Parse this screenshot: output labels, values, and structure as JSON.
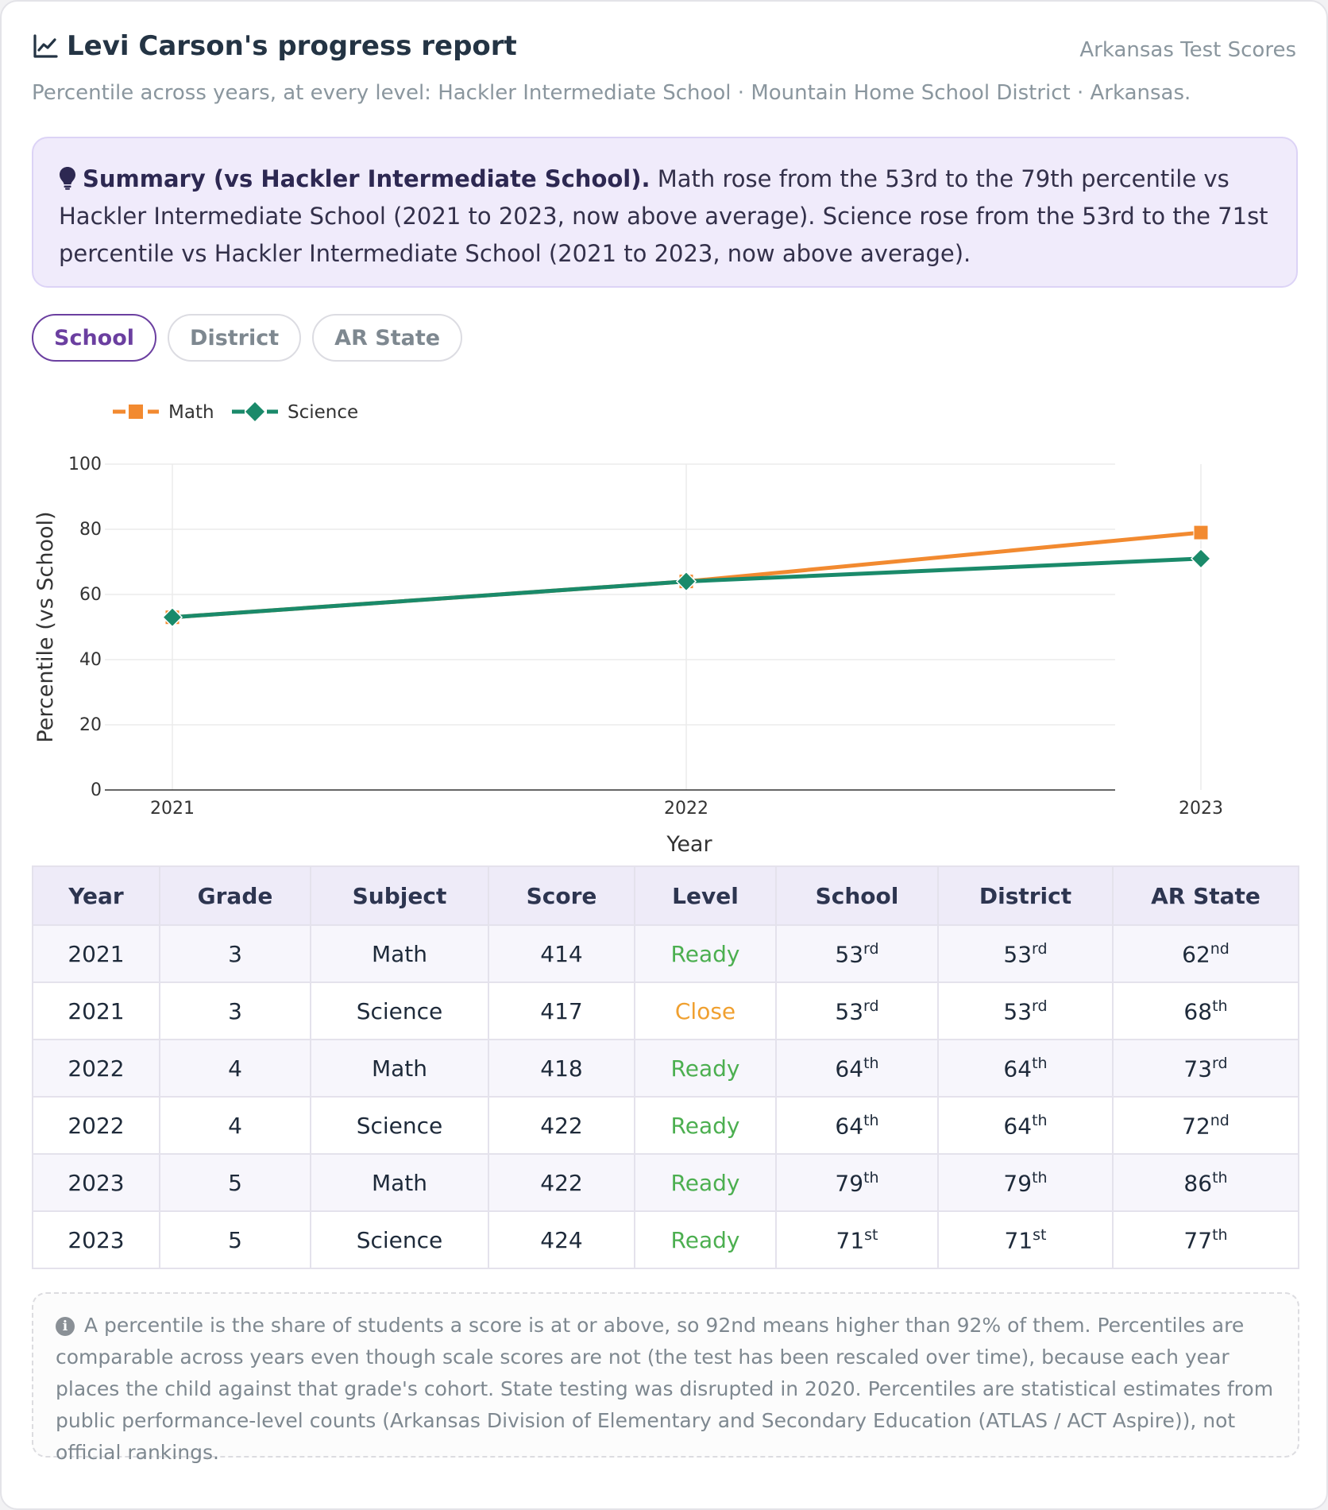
{
  "header": {
    "title": "Levi Carson's progress report",
    "brand": "Arkansas Test Scores",
    "subtitle": "Percentile across years, at every level: Hackler Intermediate School · Mountain Home School District · Arkansas."
  },
  "summary": {
    "heading": "Summary (vs Hackler Intermediate School).",
    "body": "Math rose from the 53rd to the 79th percentile vs Hackler Intermediate School (2021 to 2023, now above average). Science rose from the 53rd to the 71st percentile vs Hackler Intermediate School (2021 to 2023, now above average)."
  },
  "tabs": [
    {
      "label": "School",
      "active": true
    },
    {
      "label": "District",
      "active": false
    },
    {
      "label": "AR State",
      "active": false
    }
  ],
  "chart_data": {
    "type": "line",
    "x": [
      "2021",
      "2022",
      "2023"
    ],
    "series": [
      {
        "name": "Math",
        "values": [
          53,
          64,
          79
        ],
        "color": "#f28a30",
        "marker": "square"
      },
      {
        "name": "Science",
        "values": [
          53,
          64,
          71
        ],
        "color": "#1a8a6a",
        "marker": "diamond"
      }
    ],
    "xlabel": "Year",
    "ylabel": "Percentile (vs School)",
    "ylim": [
      0,
      100
    ],
    "yticks": [
      0,
      20,
      40,
      60,
      80,
      100
    ],
    "legend": "top-left",
    "grid": true
  },
  "table": {
    "headers": [
      "Year",
      "Grade",
      "Subject",
      "Score",
      "Level",
      "School",
      "District",
      "AR State"
    ],
    "rows": [
      {
        "year": "2021",
        "grade": "3",
        "subject": "Math",
        "score": "414",
        "level": "Ready",
        "school": "53",
        "school_suffix": "rd",
        "district": "53",
        "district_suffix": "rd",
        "state": "62",
        "state_suffix": "nd"
      },
      {
        "year": "2021",
        "grade": "3",
        "subject": "Science",
        "score": "417",
        "level": "Close",
        "school": "53",
        "school_suffix": "rd",
        "district": "53",
        "district_suffix": "rd",
        "state": "68",
        "state_suffix": "th"
      },
      {
        "year": "2022",
        "grade": "4",
        "subject": "Math",
        "score": "418",
        "level": "Ready",
        "school": "64",
        "school_suffix": "th",
        "district": "64",
        "district_suffix": "th",
        "state": "73",
        "state_suffix": "rd"
      },
      {
        "year": "2022",
        "grade": "4",
        "subject": "Science",
        "score": "422",
        "level": "Ready",
        "school": "64",
        "school_suffix": "th",
        "district": "64",
        "district_suffix": "th",
        "state": "72",
        "state_suffix": "nd"
      },
      {
        "year": "2023",
        "grade": "5",
        "subject": "Math",
        "score": "422",
        "level": "Ready",
        "school": "79",
        "school_suffix": "th",
        "district": "79",
        "district_suffix": "th",
        "state": "86",
        "state_suffix": "th"
      },
      {
        "year": "2023",
        "grade": "5",
        "subject": "Science",
        "score": "424",
        "level": "Ready",
        "school": "71",
        "school_suffix": "st",
        "district": "71",
        "district_suffix": "st",
        "state": "77",
        "state_suffix": "th"
      }
    ]
  },
  "note": {
    "text": "A percentile is the share of students a score is at or above, so 92nd means higher than 92% of them. Percentiles are comparable across years even though scale scores are not (the test has been rescaled over time), because each year places the child against that grade's cohort. State testing was disrupted in 2020. Percentiles are statistical estimates from public performance-level counts (Arkansas Division of Elementary and Secondary Education (ATLAS / ACT Aspire)), not official rankings."
  },
  "icons": {
    "title": "chart-line-icon",
    "summary": "lightbulb-icon",
    "note": "info-icon"
  },
  "colors": {
    "accent": "#6b3fa0",
    "ready": "#4caf50",
    "close": "#f0a030"
  }
}
